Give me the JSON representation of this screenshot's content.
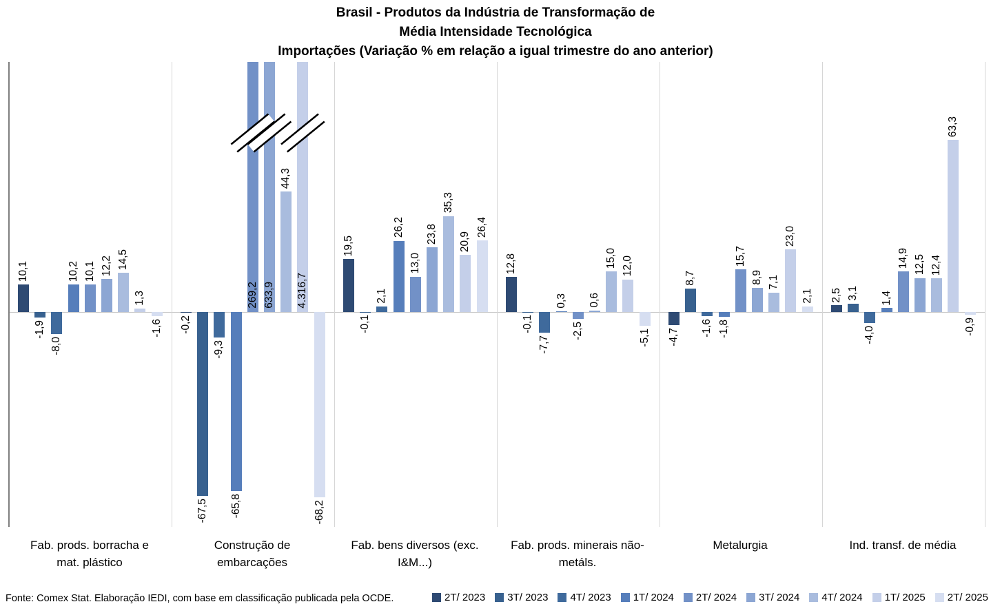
{
  "title": {
    "line1": "Brasil - Produtos da Indústria de Transformação de",
    "line2": "Média Intensidade Tecnológica",
    "line3": "Importações (Variação % em relação a igual trimestre do ano anterior)"
  },
  "source": "Fonte: Comex Stat. Elaboração IEDI, com base em classificação publicada pela OCDE.",
  "chart_data": {
    "type": "bar",
    "title": "Brasil - Produtos da Indústria de Transformação de Média Intensidade Tecnológica - Importações (Variação % em relação a igual trimestre do ano anterior)",
    "series_labels": [
      "2T/ 2023",
      "3T/ 2023",
      "4T/ 2023",
      "1T/ 2024",
      "2T/ 2024",
      "3T/ 2024",
      "4T/ 2024",
      "1T/ 2025",
      "2T/ 2025"
    ],
    "series_colors": [
      "#2e4a73",
      "#38618f",
      "#3f6a9c",
      "#567ebb",
      "#7291c7",
      "#8ca6d3",
      "#a9bcde",
      "#c4cfe9",
      "#d6def1"
    ],
    "legend_position": "bottom-right",
    "grid": "vertical-category-separators",
    "ylim": [
      -79,
      92
    ],
    "axis_break": {
      "applied_above": 91,
      "note": "bars exceeding plot top are clipped with double-slash break marks"
    },
    "groups": [
      {
        "category": "Fab. prods. borracha e mat. plástico",
        "values": [
          10.1,
          -1.9,
          -8.0,
          10.2,
          10.1,
          12.2,
          14.5,
          1.3,
          -1.6
        ],
        "labels": [
          "10,1",
          "-1,9",
          "-8,0",
          "10,2",
          "10,1",
          "12,2",
          "14,5",
          "1,3",
          "-1,6"
        ]
      },
      {
        "category": "Construção de embarcações",
        "values": [
          -0.2,
          -67.5,
          -9.3,
          -65.8,
          269.2,
          633.9,
          44.3,
          4316.7,
          -68.2
        ],
        "labels": [
          "-0,2",
          "-67,5",
          "-9,3",
          "-65,8",
          "269,2",
          "633,9",
          "44,3",
          "4.316,7",
          "-68,2"
        ]
      },
      {
        "category": "Fab. bens diversos (exc. I&M...)",
        "values": [
          19.5,
          -0.1,
          2.1,
          26.2,
          13.0,
          23.8,
          35.3,
          20.9,
          26.4
        ],
        "labels": [
          "19,5",
          "-0,1",
          "2,1",
          "26,2",
          "13,0",
          "23,8",
          "35,3",
          "20,9",
          "26,4"
        ]
      },
      {
        "category": "Fab. prods. minerais não-metáls.",
        "values": [
          12.8,
          -0.1,
          -7.7,
          0.3,
          -2.5,
          0.6,
          15.0,
          12.0,
          -5.1
        ],
        "labels": [
          "12,8",
          "-0,1",
          "-7,7",
          "0,3",
          "-2,5",
          "0,6",
          "15,0",
          "12,0",
          "-5,1"
        ]
      },
      {
        "category": "Metalurgia",
        "values": [
          -4.7,
          8.7,
          -1.6,
          -1.8,
          15.7,
          8.9,
          7.1,
          23.0,
          2.1
        ],
        "labels": [
          "-4,7",
          "8,7",
          "-1,6",
          "-1,8",
          "15,7",
          "8,9",
          "7,1",
          "23,0",
          "2,1"
        ]
      },
      {
        "category": "Ind. transf. de média",
        "values": [
          2.5,
          3.1,
          -4.0,
          1.4,
          14.9,
          12.5,
          12.4,
          63.3,
          -0.9
        ],
        "labels": [
          "2,5",
          "3,1",
          "-4,0",
          "1,4",
          "14,9",
          "12,5",
          "12,4",
          "63,3",
          "-0,9"
        ]
      }
    ]
  }
}
